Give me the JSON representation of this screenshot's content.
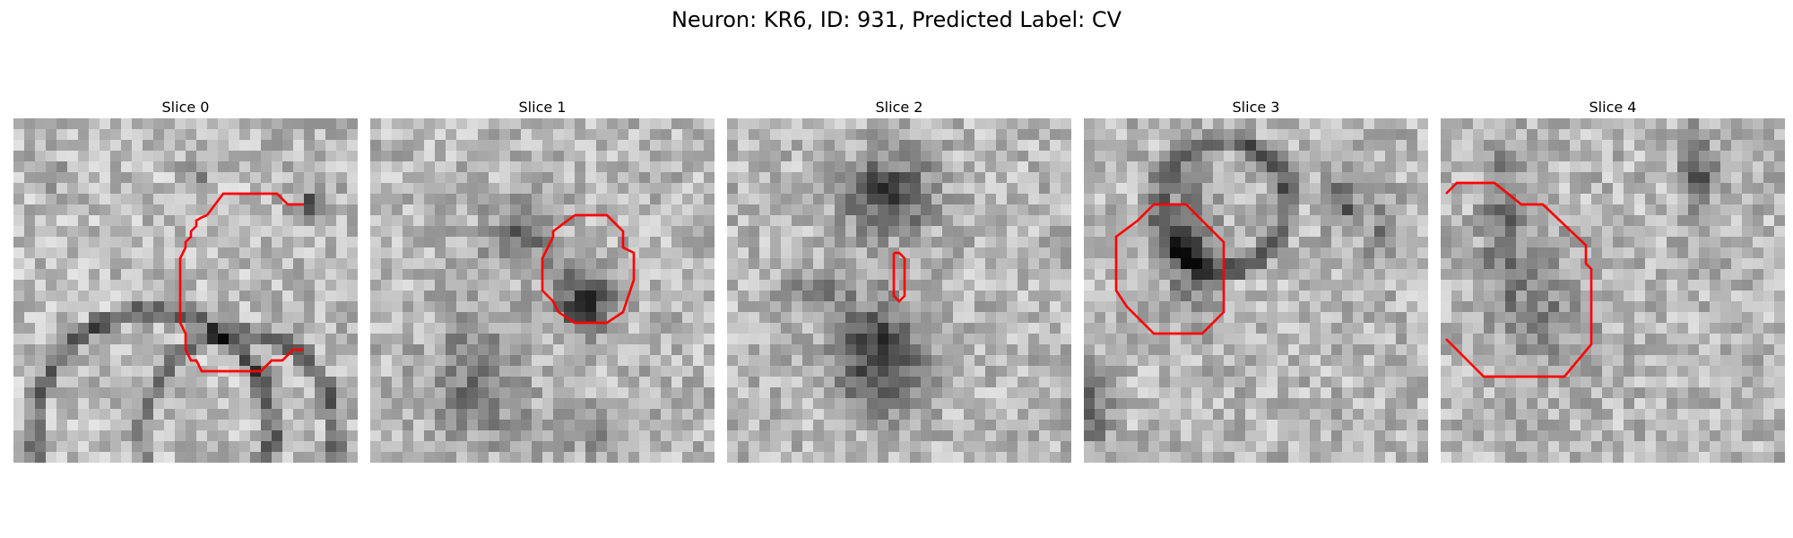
{
  "figure": {
    "title": "Neuron: KR6, ID: 931, Predicted Label: CV",
    "panels": [
      {
        "label": "Slice 0",
        "contour_color": "#ff0000",
        "image": "grayscale microscopy patch with dark ring-shaped membrane and a red outline"
      },
      {
        "label": "Slice 1",
        "contour_color": "#ff0000",
        "image": "grayscale microscopy patch with dark blob and a red octagonal outline"
      },
      {
        "label": "Slice 2",
        "contour_color": "#ff0000",
        "image": "grayscale microscopy patch with two dark blobs and a small red outline"
      },
      {
        "label": "Slice 3",
        "contour_color": "#ff0000",
        "image": "grayscale microscopy patch with dark ring and a red octagonal outline"
      },
      {
        "label": "Slice 4",
        "contour_color": "#ff0000",
        "image": "grayscale noisy microscopy patch with a red octagonal outline"
      }
    ]
  }
}
